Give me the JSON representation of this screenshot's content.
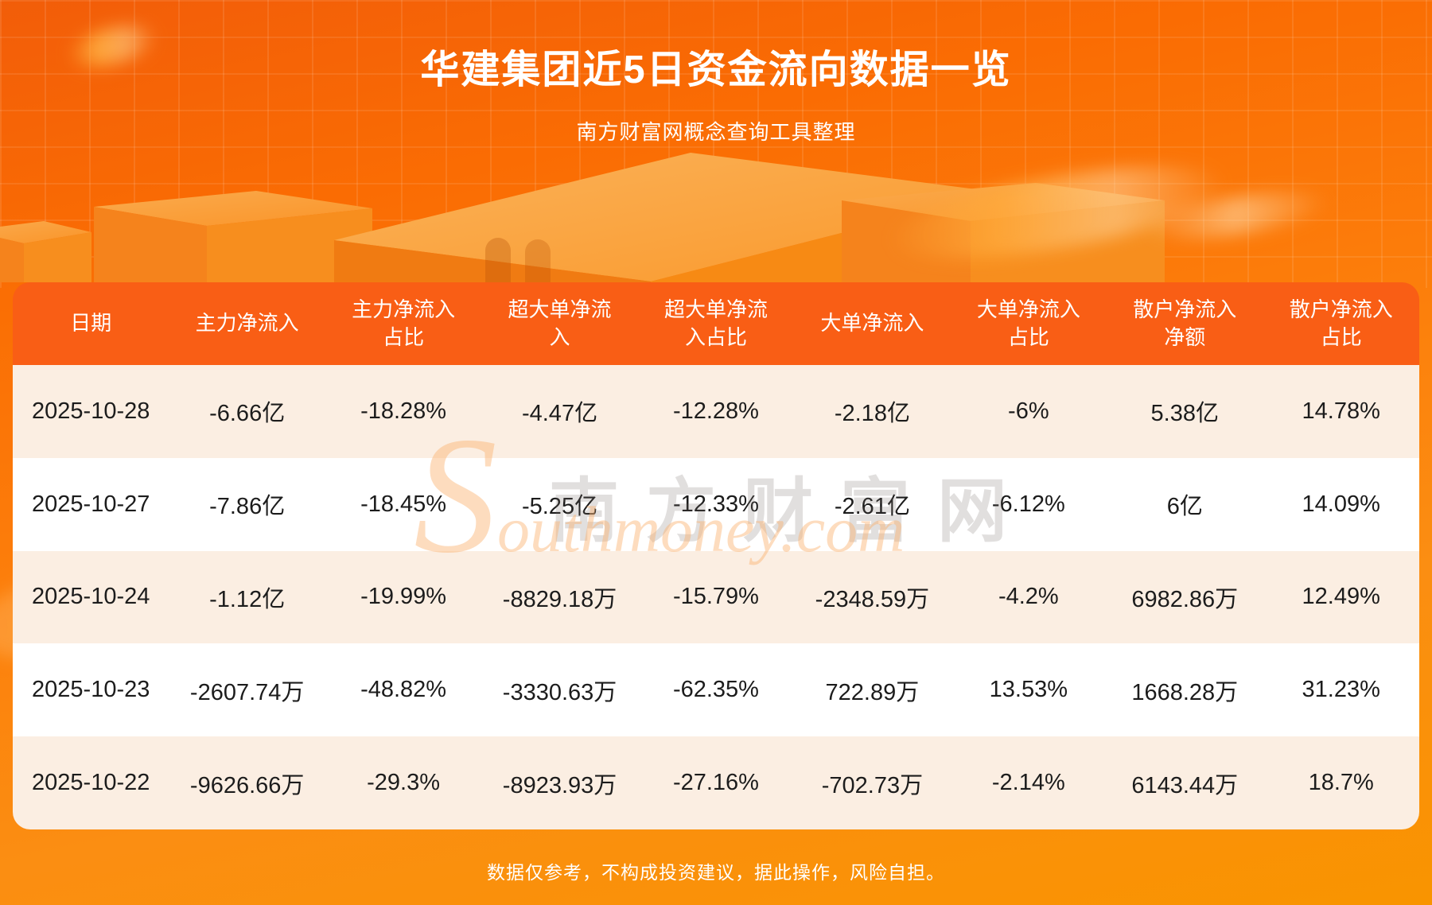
{
  "page": {
    "title": "华建集团近5日资金流向数据一览",
    "subtitle": "南方财富网概念查询工具整理",
    "disclaimer": "数据仅参考，不构成投资建议，据此操作，风险自担。"
  },
  "watermark": {
    "cn": "南方财富网",
    "en": "Southmoney.com"
  },
  "colors": {
    "background_orange": "#fb7a0c",
    "header_orange": "#f95e15",
    "row_cream": "#fbeee2",
    "row_white": "#ffffff",
    "bottom_band": "#f99400",
    "text_dark": "#1c1c1c",
    "text_white": "#ffffff"
  },
  "chart_data": {
    "type": "table",
    "title": "华建集团近5日资金流向数据一览",
    "columns": [
      "日期",
      "主力净流入",
      "主力净流入占比",
      "超大单净流入",
      "超大单净流入占比",
      "大单净流入",
      "大单净流入占比",
      "散户净流入净额",
      "散户净流入占比"
    ],
    "rows": [
      [
        "2025-10-28",
        "-6.66亿",
        "-18.28%",
        "-4.47亿",
        "-12.28%",
        "-2.18亿",
        "-6%",
        "5.38亿",
        "14.78%"
      ],
      [
        "2025-10-27",
        "-7.86亿",
        "-18.45%",
        "-5.25亿",
        "-12.33%",
        "-2.61亿",
        "-6.12%",
        "6亿",
        "14.09%"
      ],
      [
        "2025-10-24",
        "-1.12亿",
        "-19.99%",
        "-8829.18万",
        "-15.79%",
        "-2348.59万",
        "-4.2%",
        "6982.86万",
        "12.49%"
      ],
      [
        "2025-10-23",
        "-2607.74万",
        "-48.82%",
        "-3330.63万",
        "-62.35%",
        "722.89万",
        "13.53%",
        "1668.28万",
        "31.23%"
      ],
      [
        "2025-10-22",
        "-9626.66万",
        "-29.3%",
        "-8923.93万",
        "-27.16%",
        "-702.73万",
        "-2.14%",
        "6143.44万",
        "18.7%"
      ]
    ]
  }
}
